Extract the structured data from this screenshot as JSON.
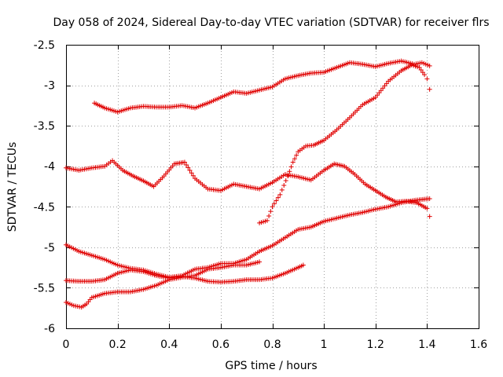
{
  "chart_data": {
    "type": "scatter",
    "title": "Day 058 of 2024, Sidereal Day-to-day VTEC variation (SDTVAR) for receiver flrs",
    "xlabel": "GPS time / hours",
    "ylabel": "SDTVAR / TECUs",
    "xlim": [
      0,
      1.6
    ],
    "ylim": [
      -6,
      -2.5
    ],
    "xticks": [
      "0",
      "0.2",
      "0.4",
      "0.6",
      "0.8",
      "1",
      "1.2",
      "1.4",
      "1.6"
    ],
    "yticks": [
      "-2.5",
      "-3",
      "-3.5",
      "-4",
      "-4.5",
      "-5",
      "-5.5",
      "-6"
    ],
    "grid": true,
    "marker": "+",
    "color": "#e00000",
    "series": [
      {
        "x": [
          0.11,
          0.15,
          0.2,
          0.25,
          0.3,
          0.35,
          0.4,
          0.45,
          0.5,
          0.55,
          0.6,
          0.65,
          0.7,
          0.75,
          0.8,
          0.85,
          0.9,
          0.95,
          1.0,
          1.05,
          1.1,
          1.15,
          1.2,
          1.25,
          1.3,
          1.35,
          1.38,
          1.41
        ],
        "y": [
          -3.22,
          -3.28,
          -3.33,
          -3.28,
          -3.26,
          -3.27,
          -3.27,
          -3.25,
          -3.28,
          -3.22,
          -3.15,
          -3.08,
          -3.1,
          -3.06,
          -3.02,
          -2.92,
          -2.88,
          -2.85,
          -2.84,
          -2.78,
          -2.72,
          -2.74,
          -2.77,
          -2.73,
          -2.7,
          -2.74,
          -2.72,
          -2.76
        ]
      },
      {
        "x": [
          0.0,
          0.05,
          0.1,
          0.15,
          0.18,
          0.22,
          0.26,
          0.3,
          0.34,
          0.38,
          0.42,
          0.46,
          0.5,
          0.55,
          0.6,
          0.65,
          0.7,
          0.75,
          0.8,
          0.85,
          0.9,
          0.95,
          1.0,
          1.04,
          1.08,
          1.12,
          1.16,
          1.2,
          1.24,
          1.28,
          1.32,
          1.36,
          1.4,
          1.41
        ],
        "y": [
          -4.02,
          -4.05,
          -4.02,
          -4.0,
          -3.93,
          -4.05,
          -4.12,
          -4.18,
          -4.25,
          -4.12,
          -3.97,
          -3.95,
          -4.15,
          -4.28,
          -4.3,
          -4.22,
          -4.25,
          -4.28,
          -4.2,
          -4.1,
          -4.13,
          -4.17,
          -4.05,
          -3.97,
          -4.0,
          -4.1,
          -4.22,
          -4.3,
          -4.38,
          -4.44,
          -4.43,
          -4.45,
          -4.52,
          -4.62
        ]
      },
      {
        "x": [
          0.0,
          0.05,
          0.1,
          0.15,
          0.2,
          0.25,
          0.3,
          0.35,
          0.4,
          0.45,
          0.5,
          0.55,
          0.6,
          0.65,
          0.7,
          0.75,
          0.8,
          0.85,
          0.9,
          0.95,
          1.0,
          1.05,
          1.1,
          1.15,
          1.2,
          1.25,
          1.3,
          1.35,
          1.41
        ],
        "y": [
          -4.97,
          -5.05,
          -5.1,
          -5.15,
          -5.22,
          -5.26,
          -5.28,
          -5.33,
          -5.37,
          -5.35,
          -5.27,
          -5.25,
          -5.2,
          -5.2,
          -5.15,
          -5.05,
          -4.98,
          -4.88,
          -4.78,
          -4.75,
          -4.68,
          -4.64,
          -4.6,
          -4.57,
          -4.53,
          -4.5,
          -4.45,
          -4.42,
          -4.4
        ]
      },
      {
        "x": [
          0.0,
          0.05,
          0.1,
          0.15,
          0.2,
          0.25,
          0.3,
          0.35,
          0.4,
          0.45,
          0.5,
          0.55,
          0.6,
          0.65,
          0.7,
          0.75,
          0.8,
          0.85,
          0.9,
          0.92
        ],
        "y": [
          -5.41,
          -5.42,
          -5.42,
          -5.4,
          -5.32,
          -5.28,
          -5.3,
          -5.35,
          -5.38,
          -5.36,
          -5.38,
          -5.42,
          -5.43,
          -5.42,
          -5.4,
          -5.4,
          -5.38,
          -5.32,
          -5.25,
          -5.22
        ]
      },
      {
        "x": [
          0.0,
          0.03,
          0.06,
          0.08,
          0.1,
          0.15,
          0.2,
          0.25,
          0.3,
          0.35,
          0.4,
          0.45,
          0.5,
          0.55,
          0.6,
          0.65,
          0.7,
          0.75
        ],
        "y": [
          -5.68,
          -5.72,
          -5.74,
          -5.7,
          -5.62,
          -5.57,
          -5.55,
          -5.55,
          -5.52,
          -5.47,
          -5.4,
          -5.37,
          -5.35,
          -5.27,
          -5.25,
          -5.22,
          -5.22,
          -5.18
        ]
      },
      {
        "x": [
          0.75,
          0.78,
          0.8,
          0.83,
          0.86,
          0.88,
          0.9,
          0.93,
          0.96,
          1.0,
          1.05,
          1.1,
          1.15,
          1.2,
          1.25,
          1.3,
          1.34,
          1.37,
          1.39,
          1.4,
          1.41
        ],
        "y": [
          -4.7,
          -4.67,
          -4.5,
          -4.35,
          -4.12,
          -3.95,
          -3.82,
          -3.75,
          -3.74,
          -3.68,
          -3.55,
          -3.4,
          -3.24,
          -3.15,
          -2.95,
          -2.82,
          -2.75,
          -2.78,
          -2.87,
          -2.92,
          -3.05
        ]
      }
    ]
  }
}
